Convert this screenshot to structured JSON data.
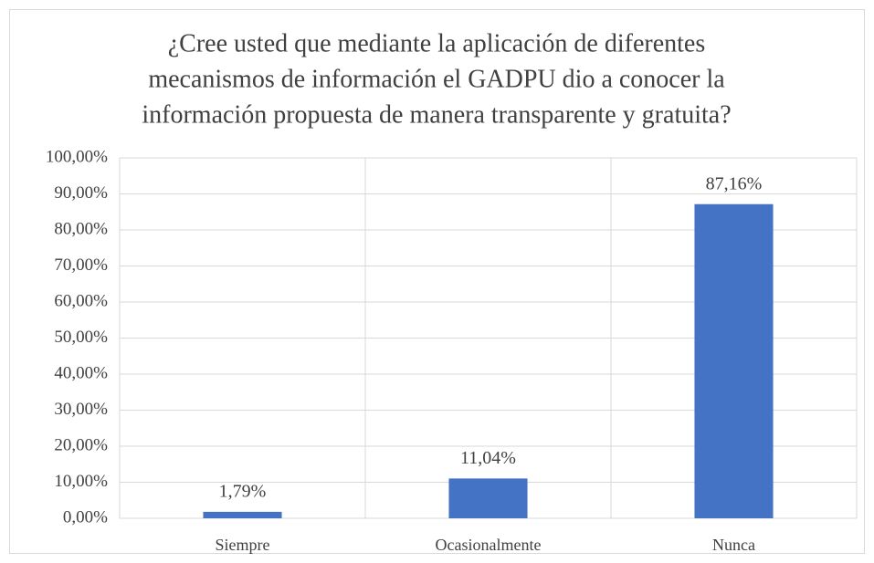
{
  "chart_data": {
    "type": "bar",
    "title": [
      "¿Cree usted que mediante la aplicación de diferentes",
      "mecanismos de información el GADPU dio a conocer la",
      "información propuesta de manera transparente y gratuita?"
    ],
    "categories": [
      "Siempre",
      "Ocasionalmente",
      "Nunca"
    ],
    "values": [
      1.79,
      11.04,
      87.16
    ],
    "value_labels": [
      "1,79%",
      "11,04%",
      "87,16%"
    ],
    "color": "#4472c4",
    "ylim": [
      0,
      100
    ],
    "yticks": [
      {
        "value": 0,
        "label": "0,00%"
      },
      {
        "value": 10,
        "label": "10,00%"
      },
      {
        "value": 20,
        "label": "20,00%"
      },
      {
        "value": 30,
        "label": "30,00%"
      },
      {
        "value": 40,
        "label": "40,00%"
      },
      {
        "value": 50,
        "label": "50,00%"
      },
      {
        "value": 60,
        "label": "60,00%"
      },
      {
        "value": 70,
        "label": "70,00%"
      },
      {
        "value": 80,
        "label": "80,00%"
      },
      {
        "value": 90,
        "label": "90,00%"
      },
      {
        "value": 100,
        "label": "100,00%"
      }
    ],
    "grid": true
  }
}
